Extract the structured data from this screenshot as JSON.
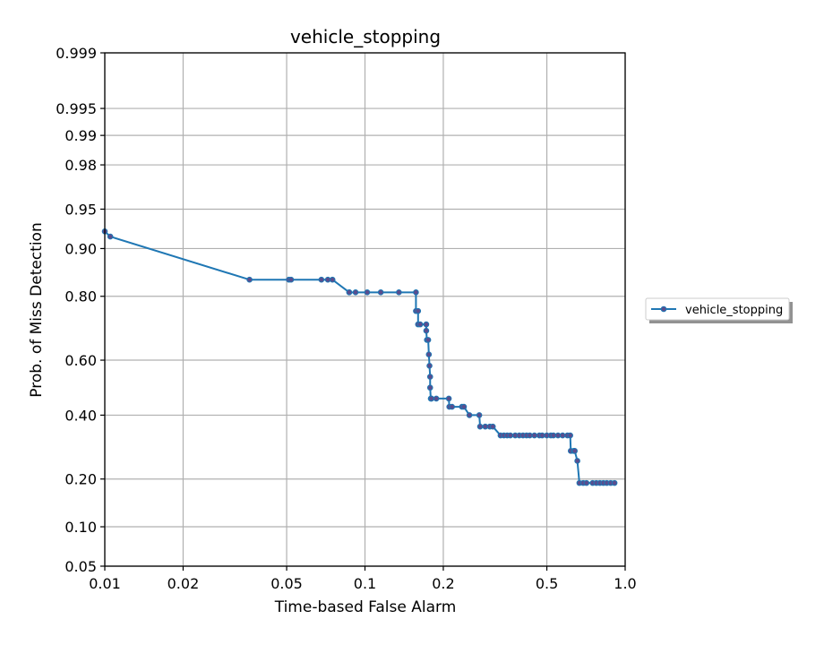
{
  "chart_data": {
    "type": "line",
    "title": "vehicle_stopping",
    "xlabel": "Time-based False Alarm",
    "ylabel": "Prob. of Miss Detection",
    "x_scale": "log",
    "y_scale": "probit",
    "xlim": [
      0.01,
      1.0
    ],
    "ylim": [
      0.05,
      0.999
    ],
    "x_ticks": [
      {
        "value": 0.01,
        "label": "0.01"
      },
      {
        "value": 0.02,
        "label": "0.02"
      },
      {
        "value": 0.05,
        "label": "0.05"
      },
      {
        "value": 0.1,
        "label": "0.1"
      },
      {
        "value": 0.2,
        "label": "0.2"
      },
      {
        "value": 0.5,
        "label": "0.5"
      },
      {
        "value": 1.0,
        "label": "1.0"
      }
    ],
    "y_ticks": [
      {
        "value": 0.05,
        "label": "0.05"
      },
      {
        "value": 0.1,
        "label": "0.10"
      },
      {
        "value": 0.2,
        "label": "0.20"
      },
      {
        "value": 0.4,
        "label": "0.40"
      },
      {
        "value": 0.6,
        "label": "0.60"
      },
      {
        "value": 0.8,
        "label": "0.80"
      },
      {
        "value": 0.9,
        "label": "0.90"
      },
      {
        "value": 0.95,
        "label": "0.95"
      },
      {
        "value": 0.98,
        "label": "0.98"
      },
      {
        "value": 0.99,
        "label": "0.99"
      },
      {
        "value": 0.995,
        "label": "0.995"
      },
      {
        "value": 0.999,
        "label": "0.999"
      }
    ],
    "grid": true,
    "legend_position": "outside-right",
    "series": [
      {
        "name": "vehicle_stopping",
        "color": "#1f77b4",
        "marker_color": "#5a4d8e",
        "x": [
          0.01,
          0.0105,
          0.036,
          0.051,
          0.052,
          0.068,
          0.072,
          0.075,
          0.087,
          0.087,
          0.092,
          0.102,
          0.115,
          0.135,
          0.157,
          0.157,
          0.16,
          0.16,
          0.163,
          0.172,
          0.172,
          0.173,
          0.175,
          0.176,
          0.177,
          0.178,
          0.178,
          0.179,
          0.18,
          0.18,
          0.188,
          0.21,
          0.211,
          0.216,
          0.236,
          0.24,
          0.252,
          0.275,
          0.277,
          0.29,
          0.302,
          0.31,
          0.332,
          0.342,
          0.352,
          0.362,
          0.378,
          0.392,
          0.405,
          0.418,
          0.43,
          0.448,
          0.468,
          0.48,
          0.5,
          0.518,
          0.53,
          0.552,
          0.575,
          0.6,
          0.615,
          0.618,
          0.635,
          0.64,
          0.655,
          0.667,
          0.69,
          0.71,
          0.75,
          0.775,
          0.8,
          0.825,
          0.85,
          0.88,
          0.91
        ],
        "y": [
          0.925,
          0.918,
          0.84,
          0.84,
          0.84,
          0.84,
          0.84,
          0.84,
          0.81,
          0.81,
          0.81,
          0.81,
          0.81,
          0.81,
          0.81,
          0.76,
          0.76,
          0.72,
          0.72,
          0.72,
          0.7,
          0.67,
          0.67,
          0.62,
          0.58,
          0.54,
          0.5,
          0.46,
          0.46,
          0.46,
          0.46,
          0.46,
          0.43,
          0.43,
          0.43,
          0.43,
          0.4,
          0.4,
          0.36,
          0.36,
          0.36,
          0.36,
          0.33,
          0.33,
          0.33,
          0.33,
          0.33,
          0.33,
          0.33,
          0.33,
          0.33,
          0.33,
          0.33,
          0.33,
          0.33,
          0.33,
          0.33,
          0.33,
          0.33,
          0.33,
          0.33,
          0.28,
          0.28,
          0.28,
          0.25,
          0.19,
          0.19,
          0.19,
          0.19,
          0.19,
          0.19,
          0.19,
          0.19,
          0.19,
          0.19
        ]
      }
    ]
  }
}
